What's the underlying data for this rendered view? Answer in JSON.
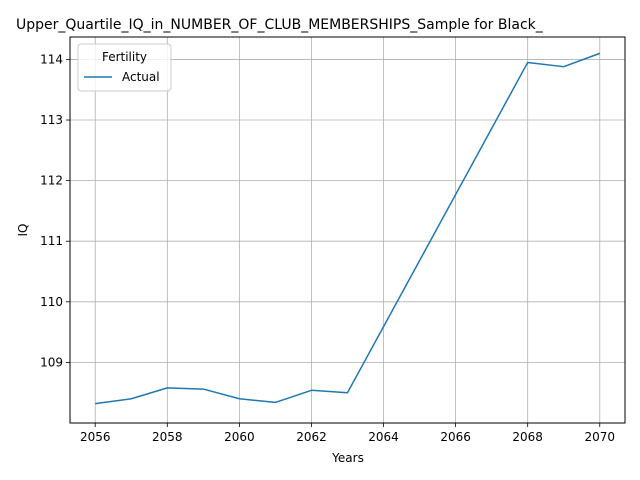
{
  "chart_data": {
    "type": "line",
    "title": "Upper_Quartile_IQ_in_NUMBER_OF_CLUB_MEMBERSHIPS_Sample for Black_",
    "xlabel": "Years",
    "ylabel": "IQ",
    "x": [
      2056,
      2057,
      2058,
      2059,
      2060,
      2061,
      2062,
      2063,
      2068,
      2069,
      2070
    ],
    "series": [
      {
        "name": "Actual",
        "color": "#1f77b4",
        "values": [
          108.32,
          108.4,
          108.58,
          108.56,
          108.4,
          108.34,
          108.54,
          108.5,
          113.95,
          113.88,
          114.1
        ]
      }
    ],
    "xticks": [
      2056,
      2058,
      2060,
      2062,
      2064,
      2066,
      2068,
      2070
    ],
    "yticks": [
      109,
      110,
      111,
      112,
      113,
      114
    ],
    "xlim": [
      2055.3,
      2070.7
    ],
    "ylim": [
      108.0,
      114.37
    ],
    "grid": true,
    "legend": {
      "title": "Fertility",
      "placement": "top-left"
    }
  }
}
